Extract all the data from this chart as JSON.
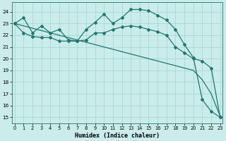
{
  "background_color": "#caecea",
  "grid_color": "#a8d8d4",
  "line_color": "#1e7870",
  "x_label": "Humidex (Indice chaleur)",
  "x_ticks": [
    0,
    1,
    2,
    3,
    4,
    5,
    6,
    7,
    8,
    9,
    10,
    11,
    12,
    13,
    14,
    15,
    16,
    17,
    18,
    19,
    20,
    21,
    22,
    23
  ],
  "y_ticks": [
    15,
    16,
    17,
    18,
    19,
    20,
    21,
    22,
    23,
    24
  ],
  "ylim": [
    14.5,
    24.8
  ],
  "xlim": [
    -0.3,
    23.3
  ],
  "series1_x": [
    0,
    1,
    2,
    3,
    4,
    5,
    6,
    7,
    8,
    9,
    10,
    11,
    12,
    13,
    14,
    15,
    16,
    17,
    18,
    19,
    20,
    21,
    22,
    23
  ],
  "series1_y": [
    23.0,
    22.8,
    22.6,
    22.4,
    22.2,
    22.0,
    21.8,
    21.6,
    21.4,
    21.2,
    21.0,
    20.8,
    20.6,
    20.4,
    20.2,
    20.0,
    19.8,
    19.6,
    19.4,
    19.2,
    19.0,
    18.2,
    17.0,
    15.1
  ],
  "series2_x": [
    0,
    1,
    2,
    3,
    4,
    5,
    6,
    7,
    8,
    9,
    10,
    11,
    12,
    13,
    14,
    15,
    16,
    17,
    18,
    19,
    20,
    21,
    22,
    23
  ],
  "series2_y": [
    23.0,
    22.2,
    21.9,
    21.8,
    21.8,
    21.5,
    21.5,
    21.5,
    21.6,
    22.2,
    22.2,
    22.5,
    22.7,
    22.8,
    22.7,
    22.5,
    22.3,
    22.0,
    21.0,
    20.5,
    20.0,
    19.8,
    19.2,
    15.0
  ],
  "series3_x": [
    0,
    1,
    2,
    3,
    4,
    5,
    6,
    7,
    8,
    9,
    10,
    11,
    12,
    13,
    14,
    15,
    16,
    17,
    18,
    19,
    20,
    21,
    22,
    23
  ],
  "series3_y": [
    23.0,
    23.5,
    22.2,
    22.8,
    22.2,
    22.5,
    21.6,
    21.5,
    22.5,
    23.1,
    23.8,
    23.0,
    23.5,
    24.2,
    24.2,
    24.1,
    23.7,
    23.3,
    22.5,
    21.2,
    20.1,
    16.5,
    15.5,
    15.0
  ]
}
